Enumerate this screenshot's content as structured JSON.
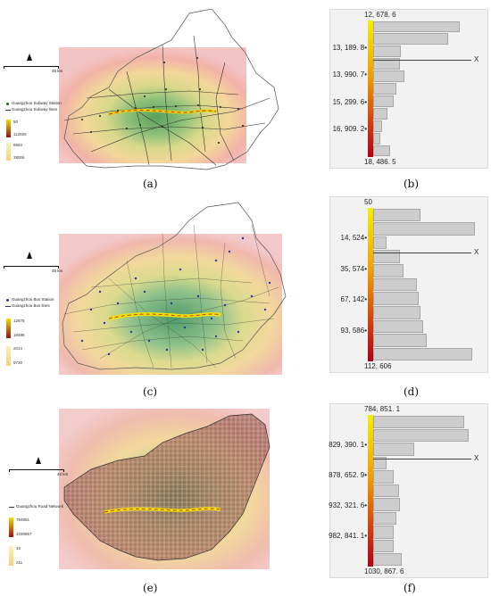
{
  "captions": [
    "(a)",
    "(b)",
    "(c)",
    "(d)",
    "(e)",
    "(f)"
  ],
  "map_a": {
    "legend_station": "Guangzhou Subway Station",
    "legend_lines": "Guangzhou Subway lines",
    "scale_label": "45 km",
    "values": [
      "50",
      "112606",
      "8864",
      "38006"
    ]
  },
  "map_c": {
    "legend_station": "Guangzhou Bus Station",
    "legend_lines": "Guangzhou Bus lines",
    "scale_label": "45 km",
    "values": [
      "12678",
      "18486",
      "2014",
      "9730"
    ]
  },
  "map_e": {
    "legend_lines": "Guangzhou Road Network",
    "scale_label": "45 km",
    "values": [
      "784851",
      "1030867",
      "15",
      "211"
    ]
  },
  "chart_data": [
    {
      "type": "bar",
      "orientation": "horizontal",
      "top_label": "12, 678. 6",
      "bottom_label": "18, 486. 5",
      "ticks": [
        "13, 189. 8",
        "13, 990. 7",
        "15, 299. 6",
        "16, 909. 2"
      ],
      "marker": "X",
      "values": [
        0.84,
        0.72,
        0.27,
        0.26,
        0.3,
        0.22,
        0.2,
        0.14,
        0.09,
        0.07,
        0.16
      ]
    },
    {
      "type": "bar",
      "orientation": "horizontal",
      "top_label": "50",
      "bottom_label": "112, 606",
      "ticks": [
        "14, 524",
        "35, 574",
        "67, 142",
        "93, 586"
      ],
      "marker": "X",
      "values": [
        0.46,
        0.98,
        0.13,
        0.26,
        0.29,
        0.42,
        0.44,
        0.46,
        0.48,
        0.52,
        0.96
      ]
    },
    {
      "type": "bar",
      "orientation": "horizontal",
      "top_label": "784, 851. 1",
      "bottom_label": "1030, 867. 6",
      "ticks": [
        "829, 390. 1",
        "878, 652. 9",
        "932, 321. 6",
        "982, 841. 1"
      ],
      "marker": "X",
      "values": [
        0.88,
        0.92,
        0.4,
        0.13,
        0.2,
        0.25,
        0.26,
        0.22,
        0.2,
        0.2,
        0.28
      ]
    }
  ]
}
